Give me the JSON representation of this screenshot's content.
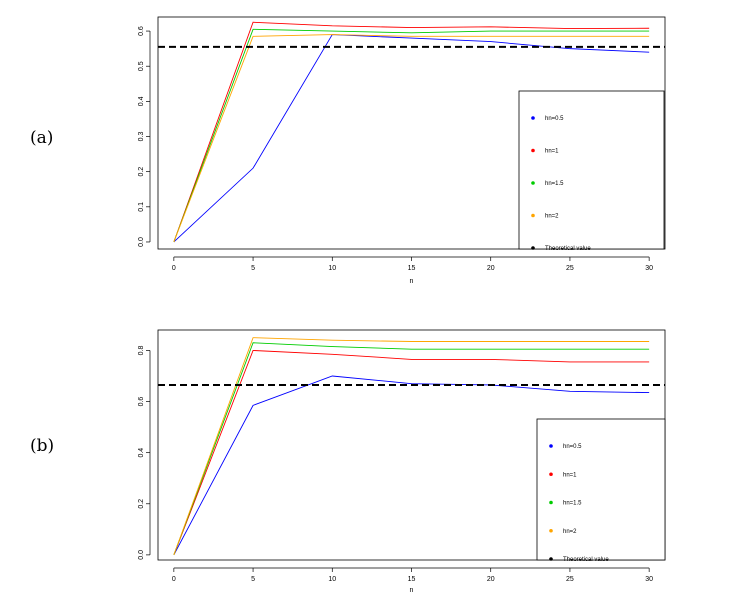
{
  "panels": [
    {
      "label": "(a)"
    },
    {
      "label": "(b)"
    }
  ],
  "chart_data": [
    {
      "type": "line",
      "xlabel": "n",
      "ylabel": "",
      "x": [
        0,
        5,
        10,
        15,
        20,
        25,
        30
      ],
      "xticks": [
        "0",
        "5",
        "10",
        "15",
        "20",
        "25",
        "30"
      ],
      "xlim": [
        -1,
        31
      ],
      "ylim": [
        -0.02,
        0.64
      ],
      "yticks": [
        "0.0",
        "0.1",
        "0.2",
        "0.3",
        "0.4",
        "0.5",
        "0.6"
      ],
      "series": [
        {
          "name": "hn=0.5",
          "color": "#0000ff",
          "values": [
            0.0,
            0.21,
            0.59,
            0.58,
            0.57,
            0.55,
            0.54
          ]
        },
        {
          "name": "hn=1",
          "color": "#ff0000",
          "values": [
            0.0,
            0.625,
            0.615,
            0.61,
            0.612,
            0.607,
            0.608
          ]
        },
        {
          "name": "hn=1.5",
          "color": "#00cc00",
          "values": [
            0.0,
            0.605,
            0.6,
            0.595,
            0.6,
            0.6,
            0.6
          ]
        },
        {
          "name": "hn=2",
          "color": "#ffa500",
          "values": [
            0.0,
            0.585,
            0.59,
            0.585,
            0.585,
            0.585,
            0.585
          ]
        }
      ],
      "reference": {
        "name": "Theoretical value",
        "color": "#000000",
        "value": 0.555
      },
      "legend_position": "bottom-right",
      "grid": false
    },
    {
      "type": "line",
      "xlabel": "n",
      "ylabel": "",
      "x": [
        0,
        5,
        10,
        15,
        20,
        25,
        30
      ],
      "xticks": [
        "0",
        "5",
        "10",
        "15",
        "20",
        "25",
        "30"
      ],
      "xlim": [
        -1,
        31
      ],
      "ylim": [
        -0.02,
        0.88
      ],
      "yticks": [
        "0.0",
        "0.2",
        "0.4",
        "0.6",
        "0.8"
      ],
      "series": [
        {
          "name": "hn=0.5",
          "color": "#0000ff",
          "values": [
            0.0,
            0.585,
            0.7,
            0.67,
            0.665,
            0.64,
            0.635
          ]
        },
        {
          "name": "hn=1",
          "color": "#ff0000",
          "values": [
            0.0,
            0.8,
            0.785,
            0.765,
            0.765,
            0.755,
            0.755
          ]
        },
        {
          "name": "hn=1.5",
          "color": "#00cc00",
          "values": [
            0.0,
            0.83,
            0.815,
            0.805,
            0.805,
            0.805,
            0.805
          ]
        },
        {
          "name": "hn=2",
          "color": "#ffa500",
          "values": [
            0.0,
            0.85,
            0.84,
            0.835,
            0.835,
            0.835,
            0.835
          ]
        }
      ],
      "reference": {
        "name": "Theoretical value",
        "color": "#000000",
        "value": 0.665
      },
      "legend_position": "bottom-right",
      "grid": false
    }
  ]
}
